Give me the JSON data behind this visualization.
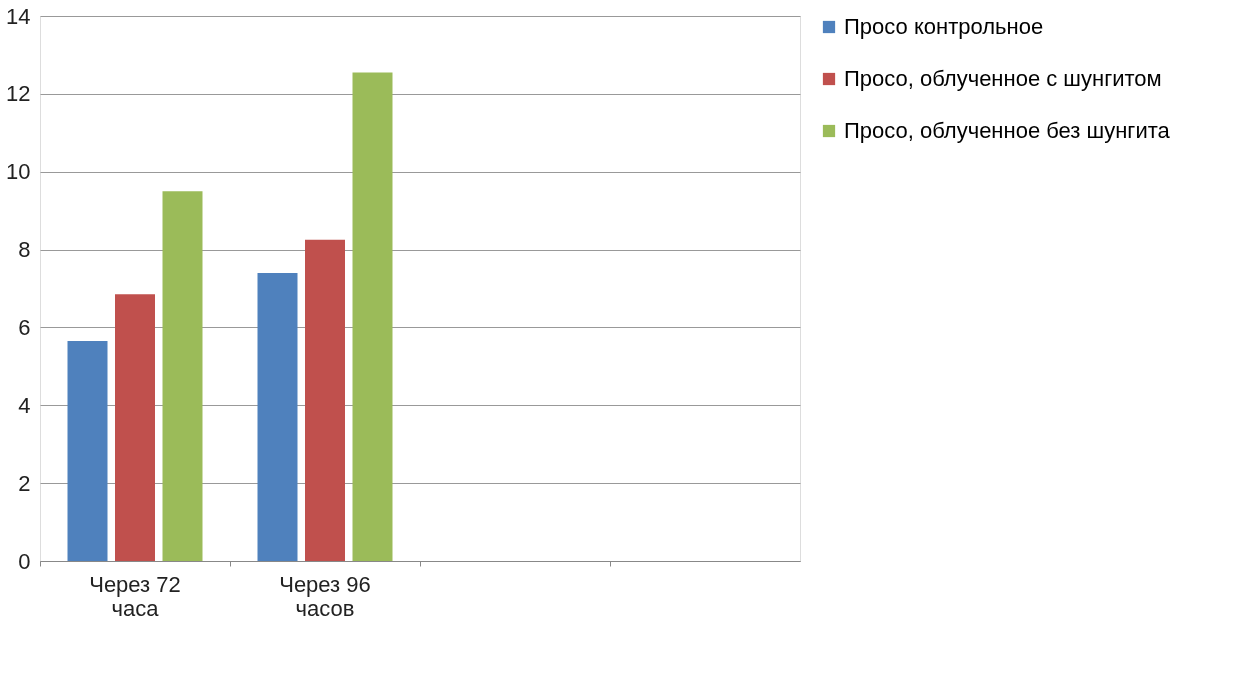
{
  "chart_data": {
    "type": "bar",
    "categories": [
      "Через 72 часа",
      "Через 96 часов",
      null,
      null
    ],
    "series": [
      {
        "name": "Просо контрольное",
        "color": "#4f81bd",
        "values": [
          5.65,
          7.4,
          null,
          null
        ]
      },
      {
        "name": "Просо, облученное с шунгитом",
        "color": "#c0504d",
        "values": [
          6.85,
          8.25,
          null,
          null
        ]
      },
      {
        "name": "Просо, облученное без шунгита",
        "color": "#9bbb59",
        "values": [
          9.5,
          12.55,
          null,
          null
        ]
      }
    ],
    "ylim": [
      0,
      14
    ],
    "yticks": [
      0,
      2,
      4,
      6,
      8,
      10,
      12,
      14
    ],
    "grid": "y",
    "legend": "right"
  }
}
